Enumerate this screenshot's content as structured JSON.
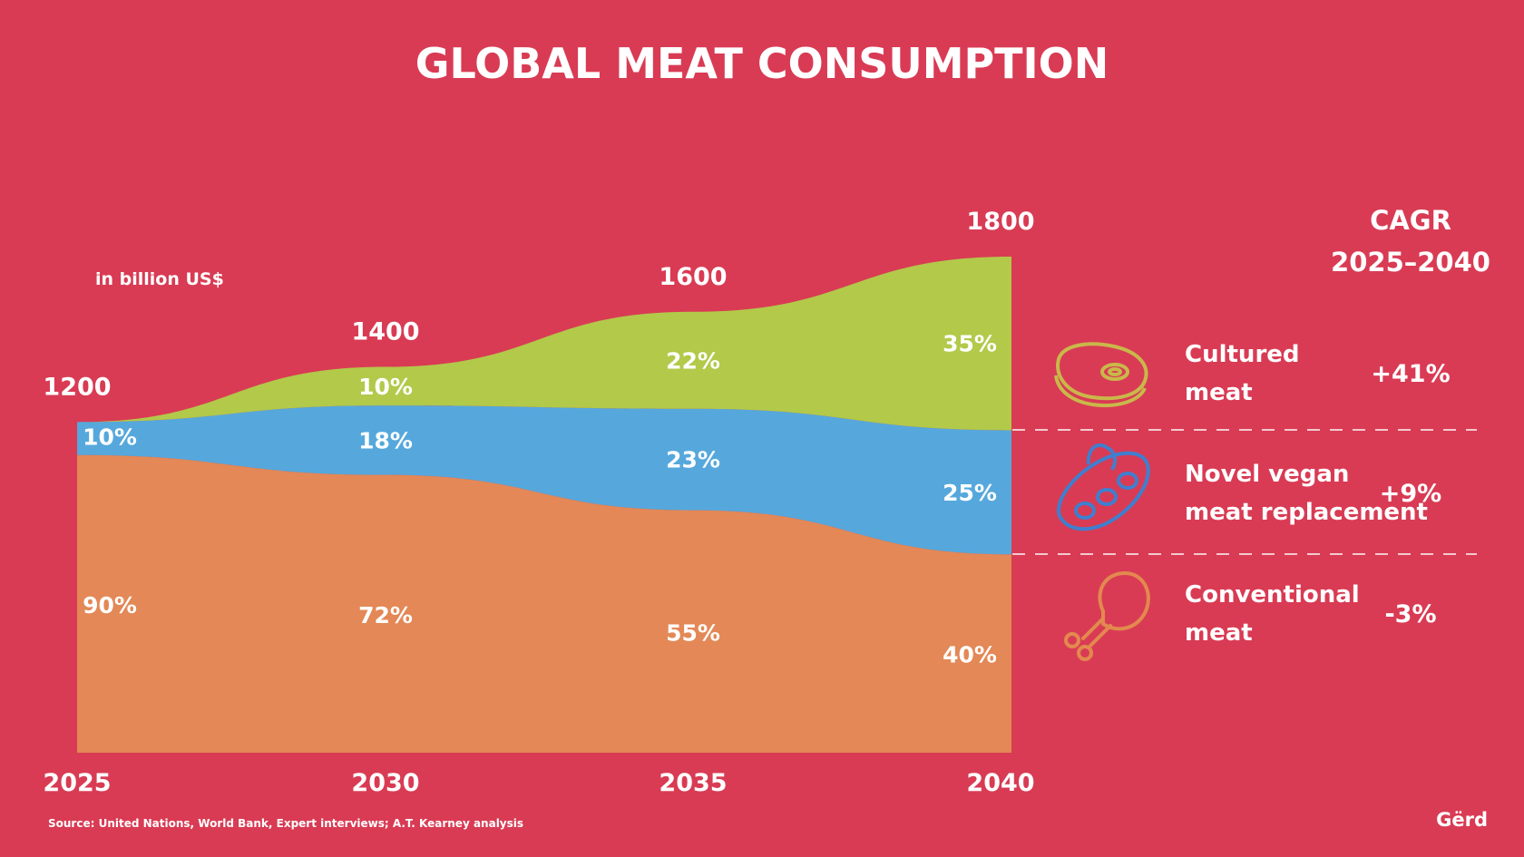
{
  "title": "GLOBAL MEAT CONSUMPTION",
  "unit_label": "in billion US$",
  "cagr_header": [
    "CAGR",
    "2025–2040"
  ],
  "source": "Source:  United Nations, World Bank, Expert interviews; A.T. Kearney analysis",
  "brand": "Gërd",
  "colors": {
    "background": "#d93b54",
    "conventional": "#e38856",
    "vegan": "#56a8dc",
    "cultured": "#b2c94a",
    "cultured_icon": "#c9b84a",
    "vegan_icon": "#3f7fcf",
    "conventional_icon": "#e3894f",
    "divider": "#f4c9cf"
  },
  "chart_data": {
    "type": "area",
    "stacked": true,
    "x": [
      "2025",
      "2030",
      "2035",
      "2040"
    ],
    "totals": [
      1200,
      1400,
      1600,
      1800
    ],
    "total_labels": [
      "1200",
      "1400",
      "1600",
      "1800"
    ],
    "ylim": [
      0,
      1800
    ],
    "series": [
      {
        "name": "Conventional meat",
        "key": "conventional",
        "values": [
          1080,
          1008,
          880,
          720
        ],
        "pct_labels": [
          "90%",
          "72%",
          "55%",
          "40%"
        ],
        "cagr": "-3%"
      },
      {
        "name": "Novel vegan meat replacement",
        "key": "vegan",
        "values": [
          120,
          252,
          368,
          450
        ],
        "pct_labels": [
          "10%",
          "18%",
          "23%",
          "25%"
        ],
        "cagr": "+9%"
      },
      {
        "name": "Cultured meat",
        "key": "cultured",
        "values": [
          0,
          140,
          352,
          630
        ],
        "pct_labels": [
          "",
          "10%",
          "22%",
          "35%"
        ],
        "cagr": "+41%"
      }
    ]
  },
  "legend": [
    {
      "lines": [
        "Cultured",
        "meat"
      ],
      "cagr": "+41%",
      "icon": "steak-icon"
    },
    {
      "lines": [
        "Novel vegan",
        "meat replacement"
      ],
      "cagr": "+9%",
      "icon": "soybean-pod-icon"
    },
    {
      "lines": [
        "Conventional",
        "meat"
      ],
      "cagr": "-3%",
      "icon": "chicken-leg-icon"
    }
  ]
}
